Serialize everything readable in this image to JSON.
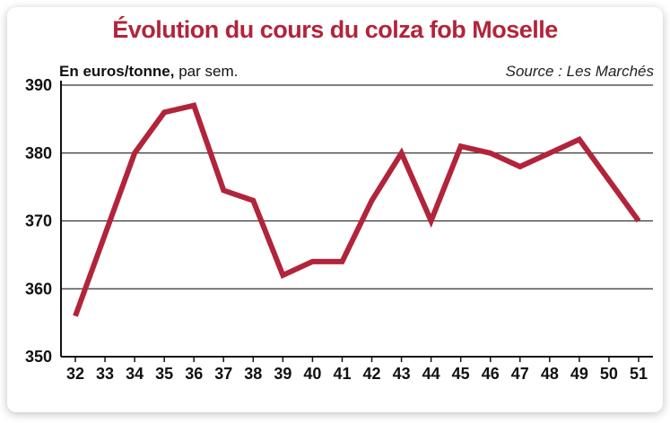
{
  "chart_data": {
    "type": "line",
    "title": "Évolution du cours du colza fob Moselle",
    "unit_label_bold": "En euros/tonne,",
    "unit_label_rest": " par sem.",
    "source": "Source : Les Marchés",
    "x": [
      "32",
      "33",
      "34",
      "35",
      "36",
      "37",
      "38",
      "39",
      "40",
      "41",
      "42",
      "43",
      "44",
      "45",
      "46",
      "47",
      "48",
      "49",
      "50",
      "51"
    ],
    "series": [
      {
        "values": [
          356,
          368,
          380,
          386,
          387,
          374.5,
          373,
          362,
          364,
          364,
          373,
          380,
          370,
          381,
          380,
          378,
          380,
          382,
          376,
          370
        ]
      }
    ],
    "ylim": [
      350,
      390
    ],
    "yticks": [
      350,
      360,
      370,
      380,
      390
    ],
    "grid": true,
    "line_color": "#b2243a"
  }
}
